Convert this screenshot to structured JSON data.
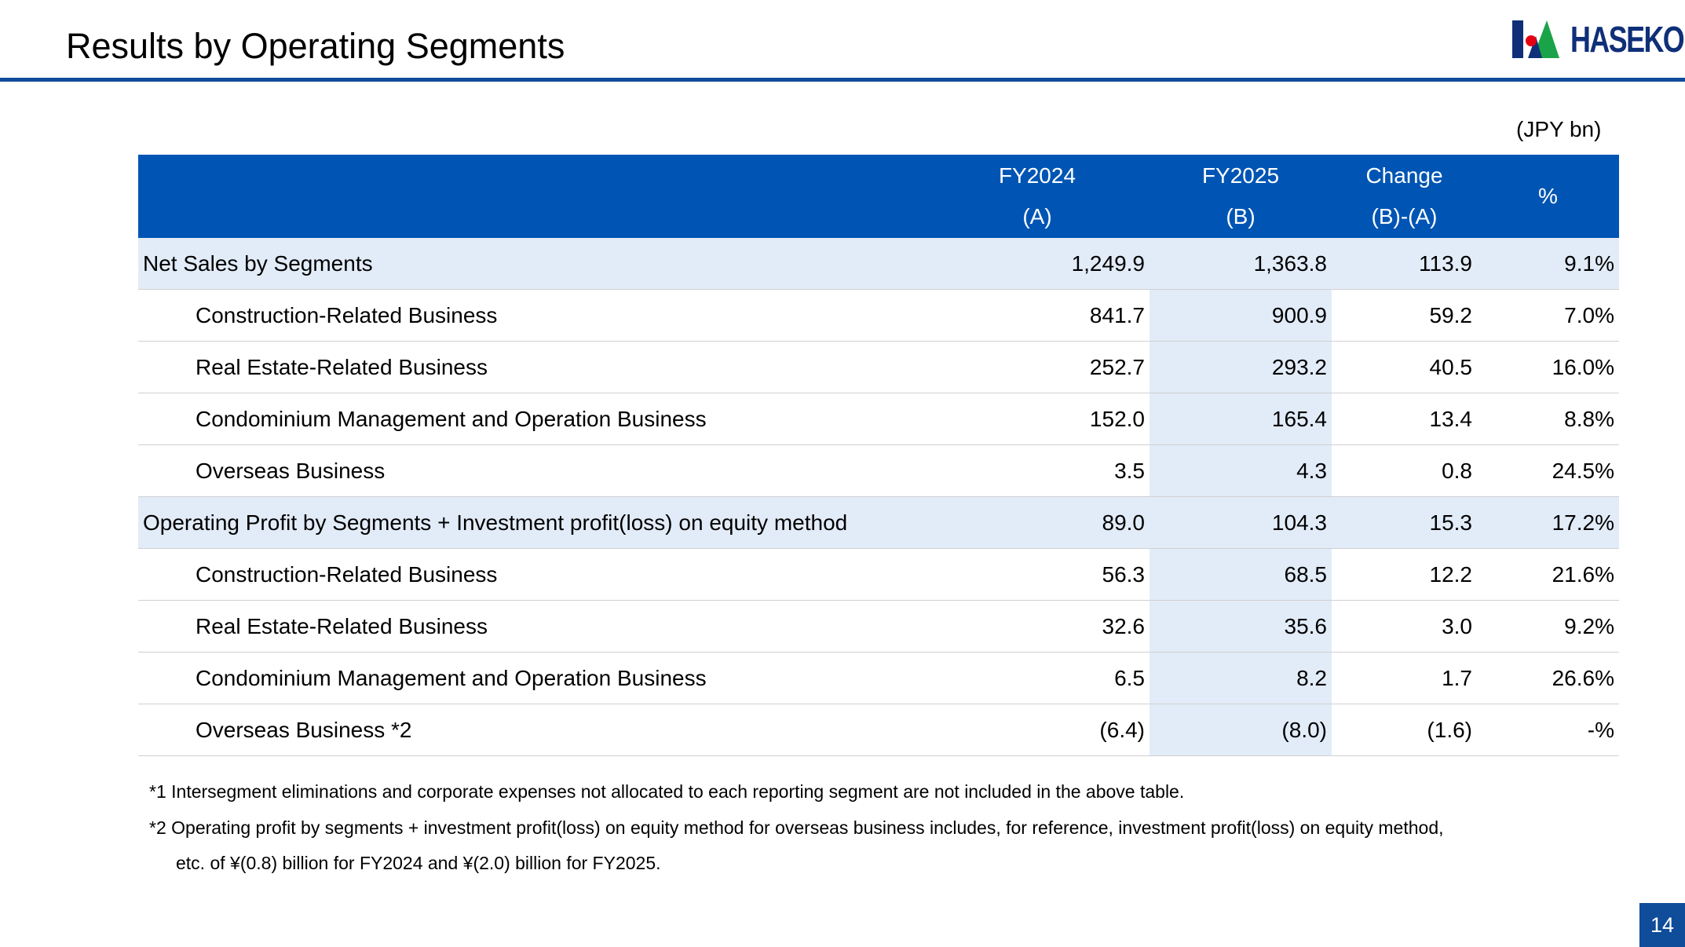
{
  "header": {
    "title": "Results by Operating Segments",
    "logo_text": "HASEKO"
  },
  "unit": "(JPY bn)",
  "table": {
    "columns": [
      {
        "line1": "",
        "line2": ""
      },
      {
        "line1": "FY2024",
        "line2": "(A)"
      },
      {
        "line1": "FY2025",
        "line2": "(B)"
      },
      {
        "line1": "Change",
        "line2": "(B)-(A)"
      },
      {
        "line1": "%",
        "line2": ""
      }
    ],
    "rows": [
      {
        "label": "Net Sales by Segments",
        "fy2024": "1,249.9",
        "fy2025": "1,363.8",
        "change": "113.9",
        "pct": "9.1%"
      },
      {
        "label": "Construction-Related Business",
        "fy2024": "841.7",
        "fy2025": "900.9",
        "change": "59.2",
        "pct": "7.0%"
      },
      {
        "label": "Real Estate-Related Business",
        "fy2024": "252.7",
        "fy2025": "293.2",
        "change": "40.5",
        "pct": "16.0%"
      },
      {
        "label": "Condominium Management and Operation Business",
        "fy2024": "152.0",
        "fy2025": "165.4",
        "change": "13.4",
        "pct": "8.8%"
      },
      {
        "label": "Overseas Business",
        "fy2024": "3.5",
        "fy2025": "4.3",
        "change": "0.8",
        "pct": "24.5%"
      },
      {
        "label": "Operating Profit by Segments + Investment profit(loss) on equity method",
        "fy2024": "89.0",
        "fy2025": "104.3",
        "change": "15.3",
        "pct": "17.2%"
      },
      {
        "label": "Construction-Related Business",
        "fy2024": "56.3",
        "fy2025": "68.5",
        "change": "12.2",
        "pct": "21.6%"
      },
      {
        "label": "Real Estate-Related Business",
        "fy2024": "32.6",
        "fy2025": "35.6",
        "change": "3.0",
        "pct": "9.2%"
      },
      {
        "label": "Condominium Management and Operation Business",
        "fy2024": "6.5",
        "fy2025": "8.2",
        "change": "1.7",
        "pct": "26.6%"
      },
      {
        "label": "Overseas Business *2",
        "fy2024": "(6.4)",
        "fy2025": "(8.0)",
        "change": "(1.6)",
        "pct": "-%"
      }
    ]
  },
  "footnotes": {
    "note1": "*1 Intersegment eliminations and corporate expenses not allocated to each reporting segment are not included in the above table.",
    "note2": "*2 Operating profit by segments + investment profit(loss) on equity method for overseas business includes, for reference, investment profit(loss) on equity method,",
    "note2_cont": "etc. of ¥(0.8) billion for FY2024 and ¥(2.0) billion for FY2025."
  },
  "page_number": "14",
  "colors": {
    "header_bg": "#0055B4",
    "highlight_bg": "#E2ECF8",
    "rule": "#0F4C9A",
    "logo_green": "#1BA34A",
    "logo_red": "#E60012",
    "logo_navy": "#0F2F78"
  }
}
